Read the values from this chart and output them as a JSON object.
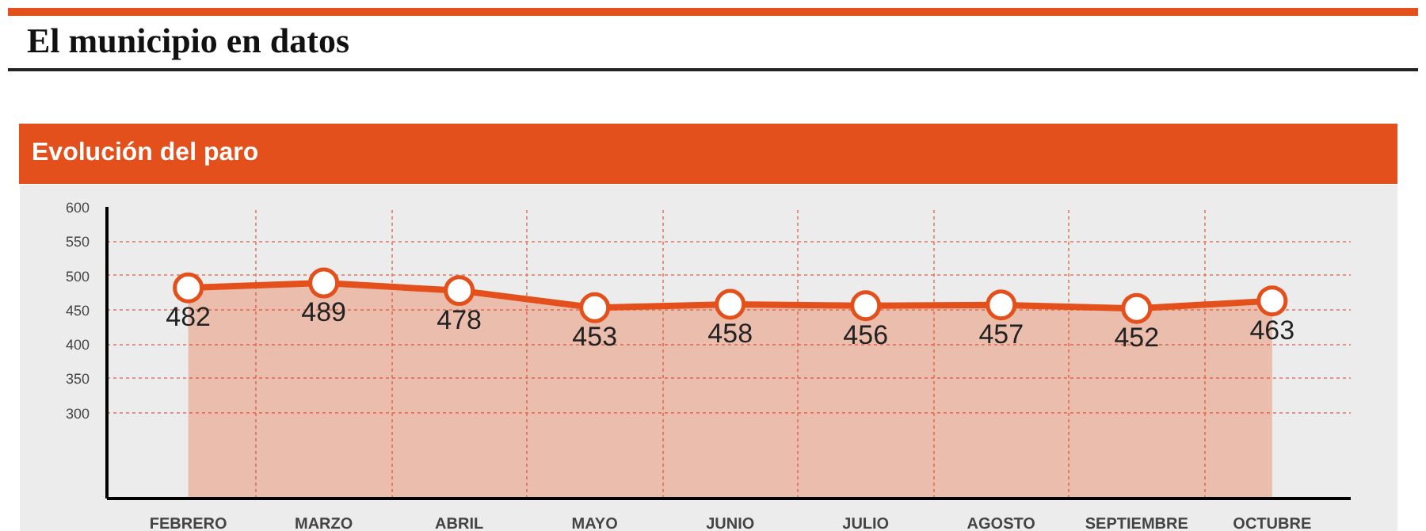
{
  "chart_data": {
    "type": "area",
    "title": "El municipio en datos",
    "subtitle": "Evolución del paro",
    "categories": [
      "FEBRERO",
      "MARZO",
      "ABRIL",
      "MAYO",
      "JUNIO",
      "JULIO",
      "AGOSTO",
      "SEPTIEMBRE",
      "OCTUBRE"
    ],
    "series": [
      {
        "color": "#e4501c",
        "values": [
          482,
          489,
          478,
          453,
          458,
          456,
          457,
          452,
          463
        ]
      }
    ],
    "ylim": [
      175,
      600
    ],
    "yticks": [
      300,
      350,
      400,
      450,
      500,
      550,
      600
    ],
    "grid": true,
    "marker": "circle",
    "data_labels": true
  }
}
